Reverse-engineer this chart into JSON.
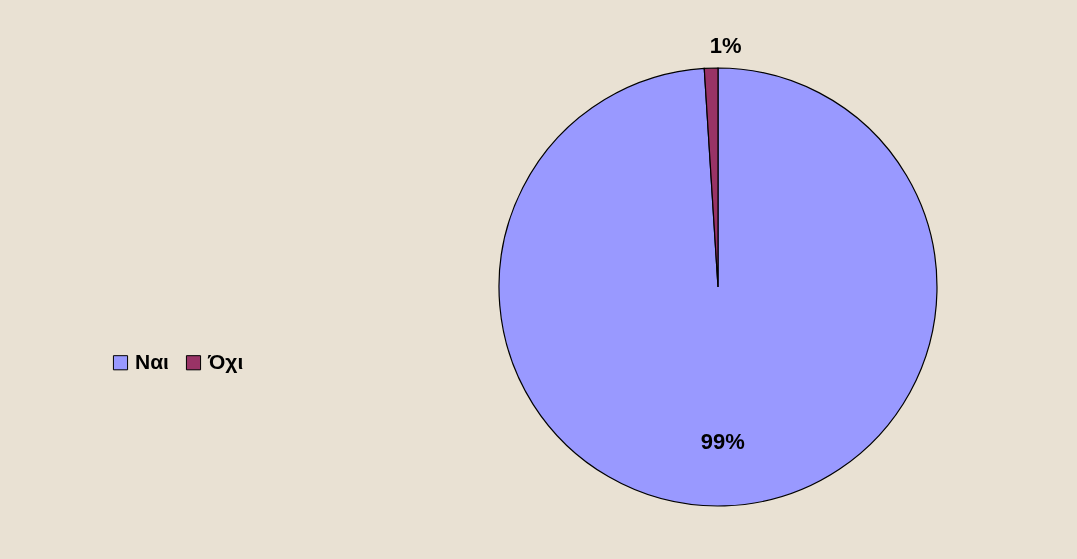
{
  "chart_data": {
    "type": "pie",
    "categories": [
      "Ναι",
      "Όχι"
    ],
    "values": [
      99,
      1
    ],
    "colors": [
      "#9999ff",
      "#993366"
    ],
    "value_labels": [
      "99%",
      "1%"
    ],
    "legend": "left"
  }
}
